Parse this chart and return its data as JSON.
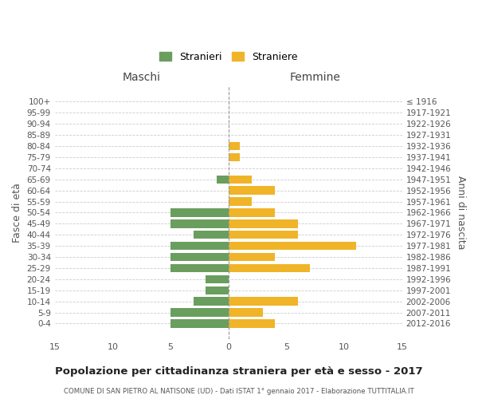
{
  "age_groups": [
    "0-4",
    "5-9",
    "10-14",
    "15-19",
    "20-24",
    "25-29",
    "30-34",
    "35-39",
    "40-44",
    "45-49",
    "50-54",
    "55-59",
    "60-64",
    "65-69",
    "70-74",
    "75-79",
    "80-84",
    "85-89",
    "90-94",
    "95-99",
    "100+"
  ],
  "birth_years": [
    "2012-2016",
    "2007-2011",
    "2002-2006",
    "1997-2001",
    "1992-1996",
    "1987-1991",
    "1982-1986",
    "1977-1981",
    "1972-1976",
    "1967-1971",
    "1962-1966",
    "1957-1961",
    "1952-1956",
    "1947-1951",
    "1942-1946",
    "1937-1941",
    "1932-1936",
    "1927-1931",
    "1922-1926",
    "1917-1921",
    "≤ 1916"
  ],
  "males": [
    5,
    5,
    3,
    2,
    2,
    5,
    5,
    5,
    3,
    5,
    5,
    0,
    0,
    1,
    0,
    0,
    0,
    0,
    0,
    0,
    0
  ],
  "females": [
    4,
    3,
    6,
    0,
    0,
    7,
    4,
    11,
    6,
    6,
    4,
    2,
    4,
    2,
    0,
    1,
    1,
    0,
    0,
    0,
    0
  ],
  "male_color": "#6a9e5e",
  "female_color": "#f0b429",
  "title": "Popolazione per cittadinanza straniera per età e sesso - 2017",
  "subtitle": "COMUNE DI SAN PIETRO AL NATISONE (UD) - Dati ISTAT 1° gennaio 2017 - Elaborazione TUTTITALIA.IT",
  "legend_male": "Stranieri",
  "legend_female": "Straniere",
  "xlabel_left": "Maschi",
  "xlabel_right": "Femmine",
  "ylabel_left": "Fasce di età",
  "ylabel_right": "Anni di nascita",
  "xlim": 15,
  "background_color": "#ffffff",
  "grid_color": "#cccccc"
}
